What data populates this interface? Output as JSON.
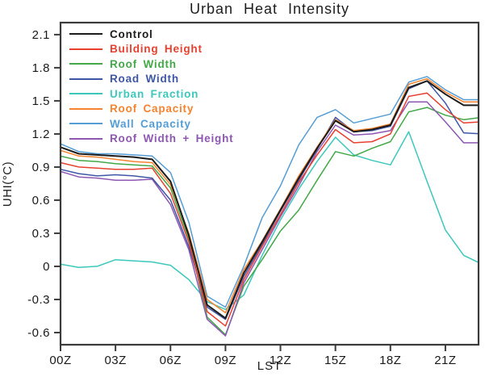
{
  "chart_data": {
    "type": "line",
    "title": "Urban Heat Intensity",
    "xlabel": "LST",
    "ylabel": "UHI(°C)",
    "x_hours": [
      0,
      1,
      2,
      3,
      4,
      5,
      6,
      7,
      8,
      9,
      10,
      11,
      12,
      13,
      14,
      15,
      16,
      17,
      18,
      19,
      20,
      21,
      22,
      23
    ],
    "xtick_hours": [
      0,
      3,
      6,
      9,
      12,
      15,
      18,
      21
    ],
    "xtick_labels": [
      "00Z",
      "03Z",
      "06Z",
      "09Z",
      "12Z",
      "15Z",
      "18Z",
      "21Z"
    ],
    "ytick_values": [
      -0.6,
      -0.3,
      0,
      0.3,
      0.6,
      0.9,
      1.2,
      1.5,
      1.8,
      2.1
    ],
    "ytick_labels": [
      "-0.6",
      "-0.3",
      "0",
      "0.3",
      "0.6",
      "0.9",
      "1.2",
      "1.5",
      "1.8",
      "2.1"
    ],
    "ylim": [
      -0.71,
      2.209
    ],
    "xlim": [
      0,
      22.81
    ],
    "grid": false,
    "legend_position": "upper-left-inside",
    "frame_color": "#3b3b3b",
    "series": [
      {
        "name": "Control",
        "slug": "control",
        "color": "#1c1c1c",
        "values": [
          1.08,
          1.02,
          1.01,
          1.0,
          0.99,
          0.97,
          0.77,
          0.28,
          -0.35,
          -0.47,
          -0.06,
          0.22,
          0.51,
          0.8,
          1.07,
          1.32,
          1.22,
          1.24,
          1.28,
          1.62,
          1.68,
          1.56,
          1.46,
          1.46
        ]
      },
      {
        "name": "Building Height",
        "slug": "building-height",
        "color": "#e8402f",
        "values": [
          0.94,
          0.9,
          0.89,
          0.88,
          0.88,
          0.89,
          0.66,
          0.22,
          -0.41,
          -0.54,
          -0.12,
          0.18,
          0.47,
          0.76,
          1.01,
          1.24,
          1.12,
          1.13,
          1.2,
          1.54,
          1.57,
          1.42,
          1.3,
          1.31
        ]
      },
      {
        "name": "Roof Width",
        "slug": "roof-width",
        "color": "#43a847",
        "values": [
          1.0,
          0.96,
          0.95,
          0.93,
          0.92,
          0.91,
          0.71,
          0.25,
          -0.46,
          -0.62,
          -0.18,
          0.06,
          0.32,
          0.51,
          0.78,
          1.04,
          1.0,
          1.07,
          1.13,
          1.4,
          1.44,
          1.37,
          1.33,
          1.35
        ]
      },
      {
        "name": "Road Width",
        "slug": "road-width",
        "color": "#3f56a7",
        "values": [
          0.88,
          0.84,
          0.82,
          0.83,
          0.82,
          0.8,
          0.6,
          0.18,
          -0.37,
          -0.48,
          -0.09,
          0.2,
          0.5,
          0.78,
          1.06,
          1.35,
          1.22,
          1.23,
          1.27,
          1.61,
          1.68,
          1.48,
          1.21,
          1.2
        ]
      },
      {
        "name": "Urban Fraction",
        "slug": "urban-fraction",
        "color": "#3cc8bb",
        "values": [
          0.02,
          -0.01,
          0.0,
          0.06,
          0.05,
          0.04,
          0.01,
          -0.12,
          -0.32,
          -0.39,
          -0.26,
          0.1,
          0.42,
          0.7,
          0.95,
          1.17,
          1.01,
          0.96,
          0.92,
          1.22,
          0.77,
          0.33,
          0.1,
          0.02
        ]
      },
      {
        "name": "Roof Capacity",
        "slug": "roof-capacity",
        "color": "#f5832f",
        "values": [
          1.05,
          1.0,
          0.99,
          0.97,
          0.95,
          0.94,
          0.74,
          0.3,
          -0.3,
          -0.42,
          -0.03,
          0.23,
          0.52,
          0.82,
          1.08,
          1.33,
          1.23,
          1.25,
          1.29,
          1.65,
          1.7,
          1.58,
          1.49,
          1.49
        ]
      },
      {
        "name": "Wall Capacity",
        "slug": "wall-capacity",
        "color": "#549dd5",
        "values": [
          1.11,
          1.04,
          1.02,
          1.02,
          1.01,
          1.0,
          0.85,
          0.4,
          -0.27,
          -0.37,
          0.0,
          0.44,
          0.73,
          1.1,
          1.35,
          1.42,
          1.3,
          1.34,
          1.38,
          1.67,
          1.72,
          1.6,
          1.51,
          1.51
        ]
      },
      {
        "name": "Roof Width + Height",
        "slug": "roof-width-height",
        "color": "#8d57b2",
        "values": [
          0.86,
          0.81,
          0.8,
          0.78,
          0.78,
          0.79,
          0.56,
          0.15,
          -0.48,
          -0.63,
          -0.15,
          0.15,
          0.45,
          0.73,
          1.04,
          1.28,
          1.19,
          1.2,
          1.23,
          1.49,
          1.49,
          1.31,
          1.12,
          1.12
        ]
      }
    ]
  }
}
